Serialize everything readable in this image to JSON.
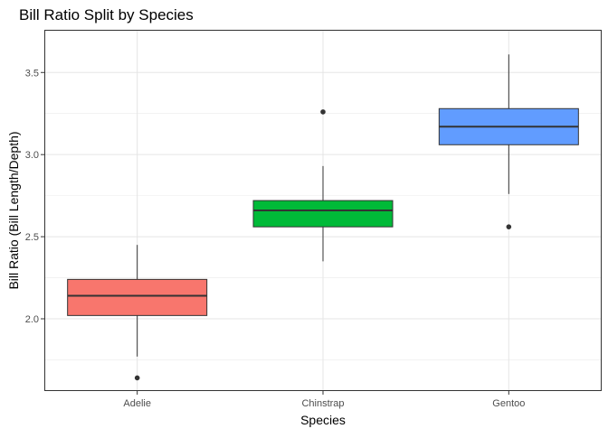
{
  "chart_data": {
    "type": "boxplot",
    "title": "Bill Ratio Split by Species",
    "xlabel": "Species",
    "ylabel": "Bill Ratio (Bill Length/Depth)",
    "ylim": [
      1.56,
      3.76
    ],
    "y_ticks": [
      2.0,
      2.5,
      3.0,
      3.5
    ],
    "y_tick_labels": [
      "2.0",
      "2.5",
      "3.0",
      "3.5"
    ],
    "grid": true,
    "legend": "none",
    "categories": [
      "Adelie",
      "Chinstrap",
      "Gentoo"
    ],
    "boxes": [
      {
        "category": "Adelie",
        "color": "#F8766D",
        "whisker_low": 1.77,
        "q1": 2.02,
        "median": 2.14,
        "q3": 2.24,
        "whisker_high": 2.45,
        "outliers": [
          1.64
        ]
      },
      {
        "category": "Chinstrap",
        "color": "#00BA38",
        "whisker_low": 2.35,
        "q1": 2.56,
        "median": 2.66,
        "q3": 2.72,
        "whisker_high": 2.93,
        "outliers": [
          3.26
        ]
      },
      {
        "category": "Gentoo",
        "color": "#619CFF",
        "whisker_low": 2.76,
        "q1": 3.06,
        "median": 3.17,
        "q3": 3.28,
        "whisker_high": 3.61,
        "outliers": [
          2.56
        ]
      }
    ]
  }
}
